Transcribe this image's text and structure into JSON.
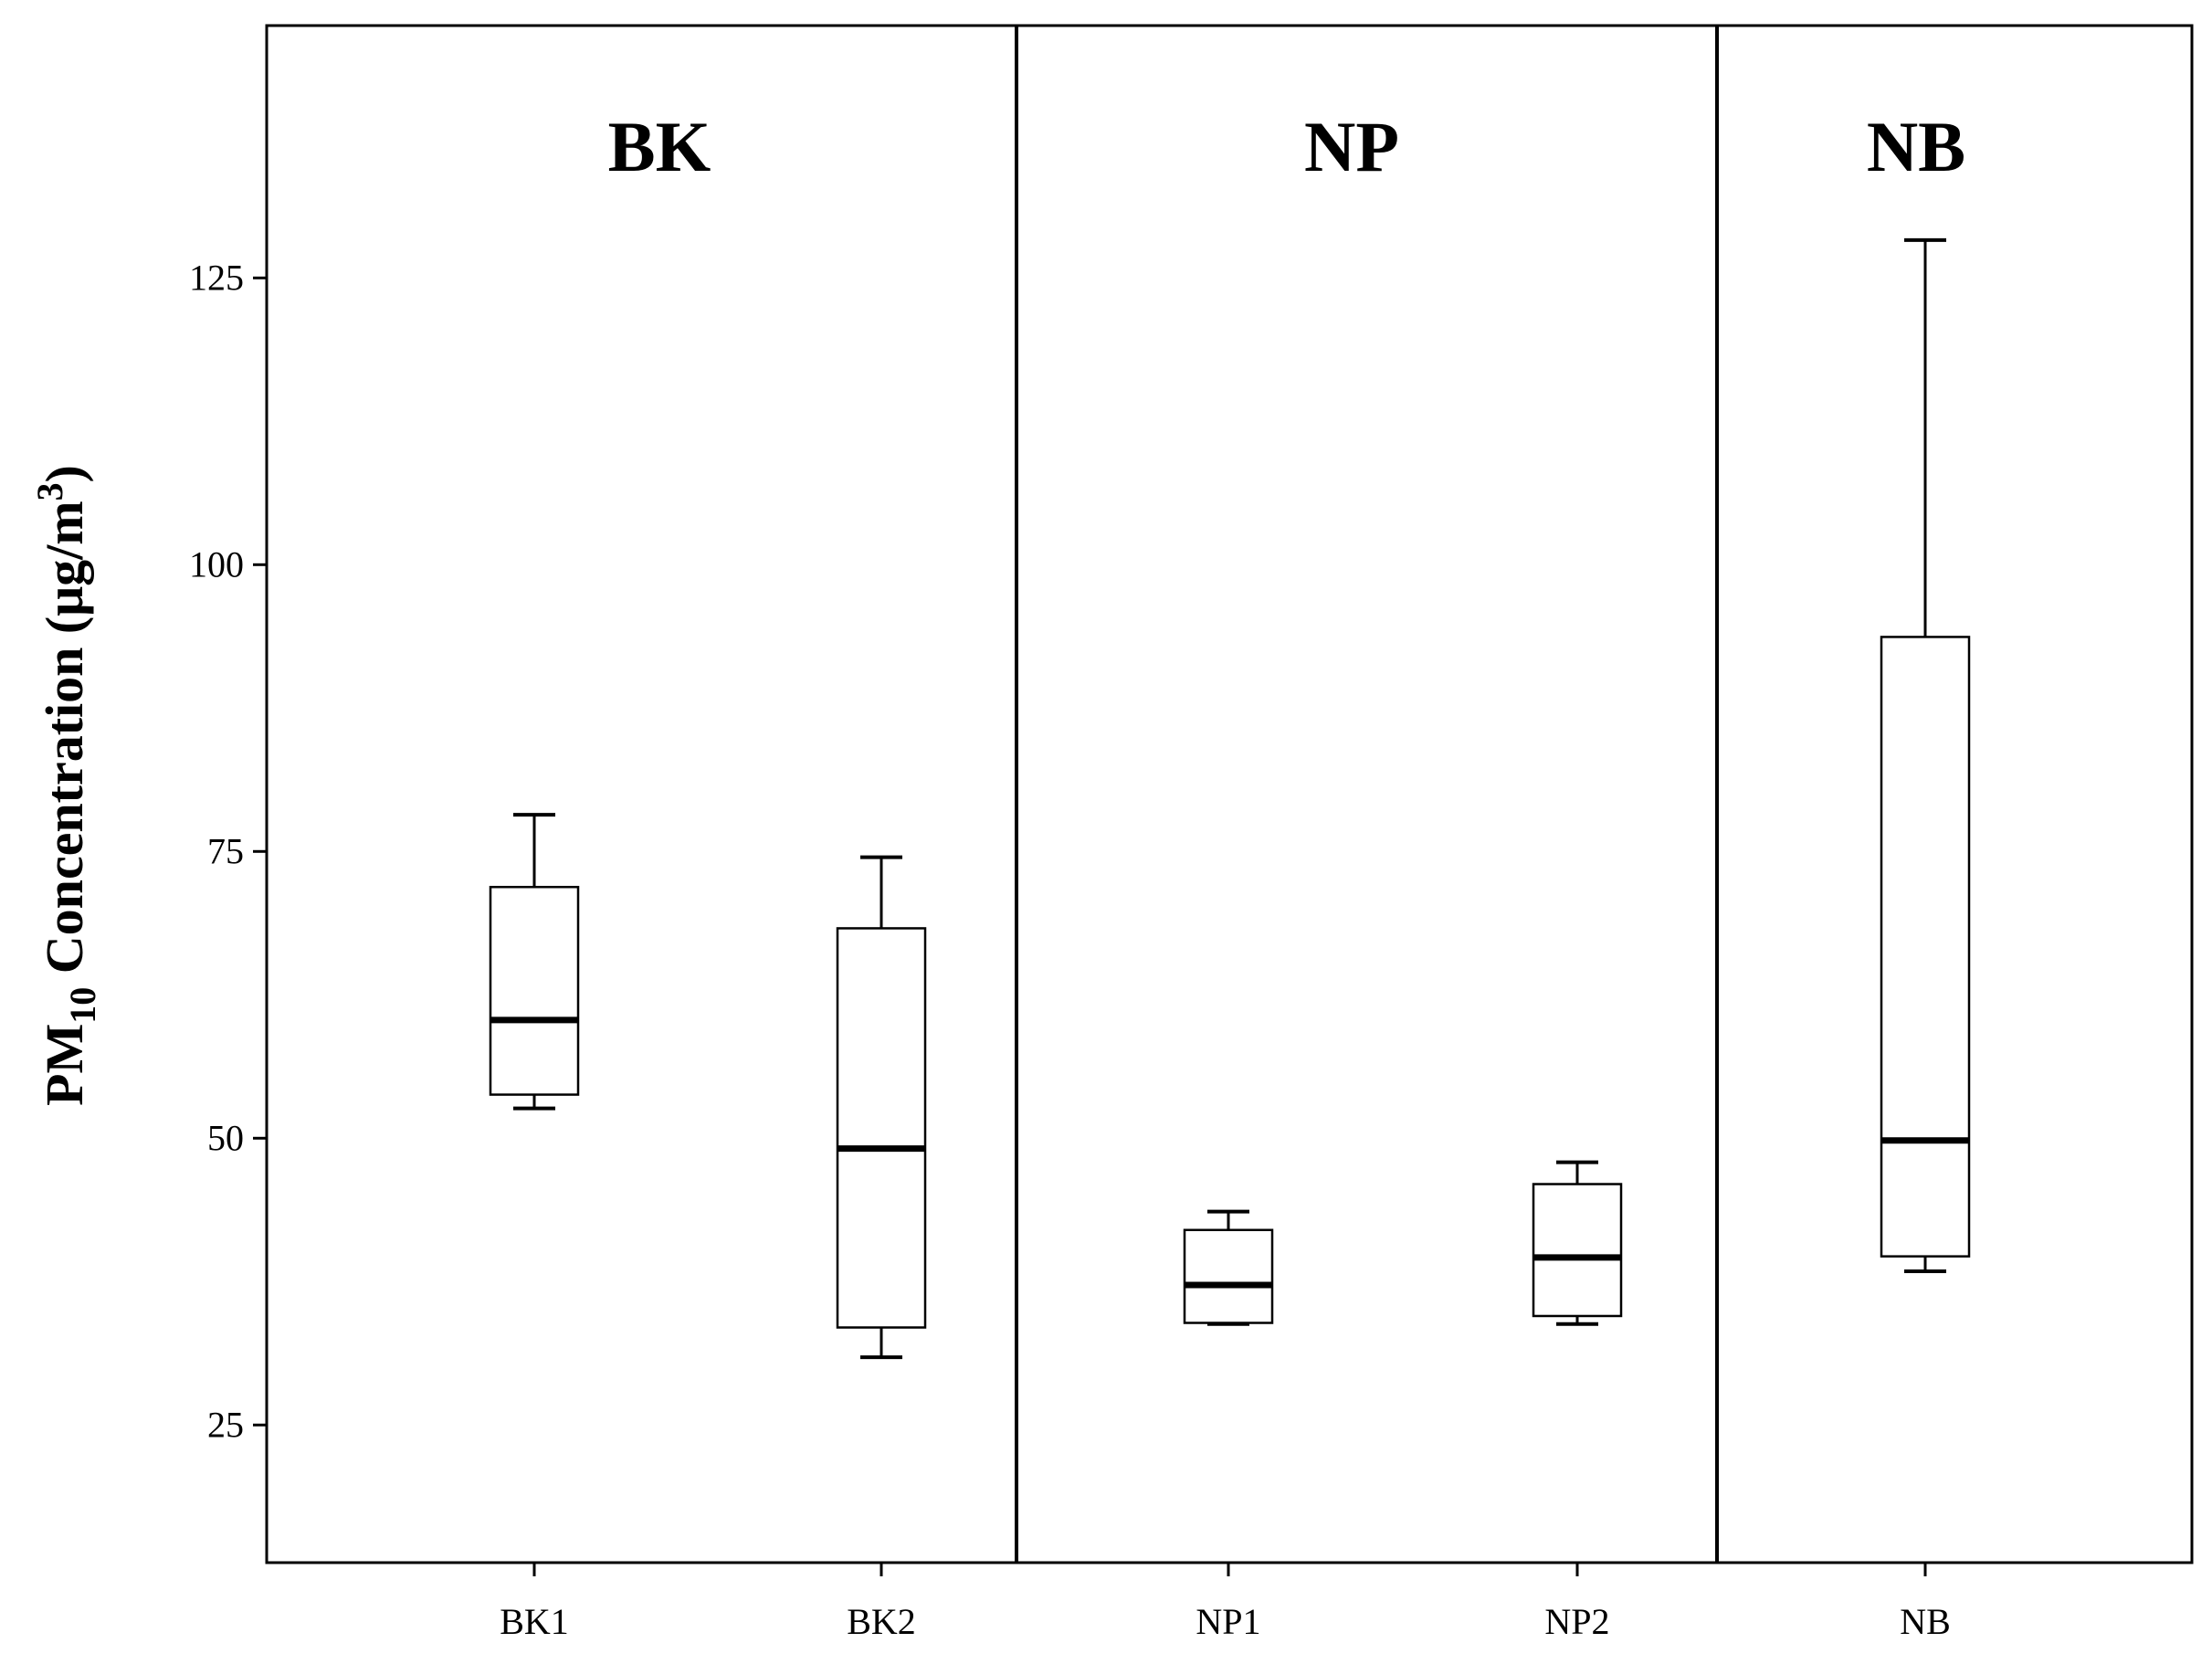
{
  "chart_data": {
    "type": "box",
    "ylabel": {
      "prefix": "PM",
      "subscript": "10",
      "middle": " Concentration (μg/m",
      "superscript": "3",
      "suffix": ")"
    },
    "ylim": [
      13,
      147
    ],
    "yticks": [
      25,
      50,
      75,
      100,
      125
    ],
    "grid": false,
    "groups": [
      {
        "label": "BK",
        "categories": [
          "BK1",
          "BK2"
        ]
      },
      {
        "label": "NP",
        "categories": [
          "NP1",
          "NP2"
        ]
      },
      {
        "label": "NB",
        "categories": [
          "NB"
        ]
      }
    ],
    "boxes": [
      {
        "category": "BK1",
        "min": 52.6,
        "q1": 53.8,
        "median": 60.3,
        "q3": 71.9,
        "max": 78.2
      },
      {
        "category": "BK2",
        "min": 30.9,
        "q1": 33.5,
        "median": 49.1,
        "q3": 68.3,
        "max": 74.5
      },
      {
        "category": "NP1",
        "min": 33.8,
        "q1": 33.9,
        "median": 37.2,
        "q3": 42.0,
        "max": 43.6
      },
      {
        "category": "NP2",
        "min": 33.8,
        "q1": 34.5,
        "median": 39.6,
        "q3": 46.0,
        "max": 47.9
      },
      {
        "category": "NB",
        "min": 38.4,
        "q1": 39.7,
        "median": 49.8,
        "q3": 93.7,
        "max": 128.3
      }
    ]
  }
}
